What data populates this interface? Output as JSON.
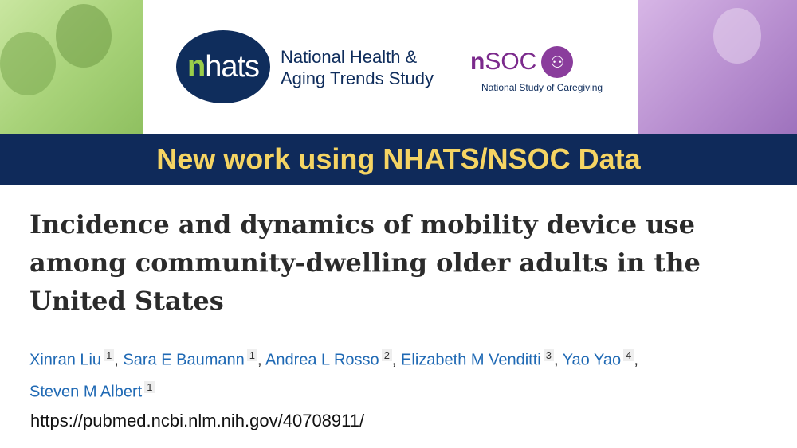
{
  "banner": {
    "nhats_logo": "nhats",
    "nhats_name_line1": "National Health &",
    "nhats_name_line2": "Aging Trends Study",
    "nsoc_logo": "nSOC",
    "nsoc_name": "National Study of Caregiving",
    "headline": "New work using NHATS/NSOC Data",
    "colors": {
      "navy": "#0f2a5a",
      "yellow": "#f5d463",
      "green": "#9acd4a",
      "purple": "#7b2a8c"
    }
  },
  "article": {
    "title": "Incidence and dynamics of mobility device use among community-dwelling older adults in the United States",
    "authors": [
      {
        "name": "Xinran Liu",
        "aff": "1"
      },
      {
        "name": "Sara E Baumann",
        "aff": "1"
      },
      {
        "name": "Andrea L Rosso",
        "aff": "2"
      },
      {
        "name": "Elizabeth M Venditti",
        "aff": "3"
      },
      {
        "name": "Yao Yao",
        "aff": "4"
      },
      {
        "name": "Steven M Albert",
        "aff": "1"
      }
    ],
    "url": "https://pubmed.ncbi.nlm.nih.gov/40708911/"
  }
}
